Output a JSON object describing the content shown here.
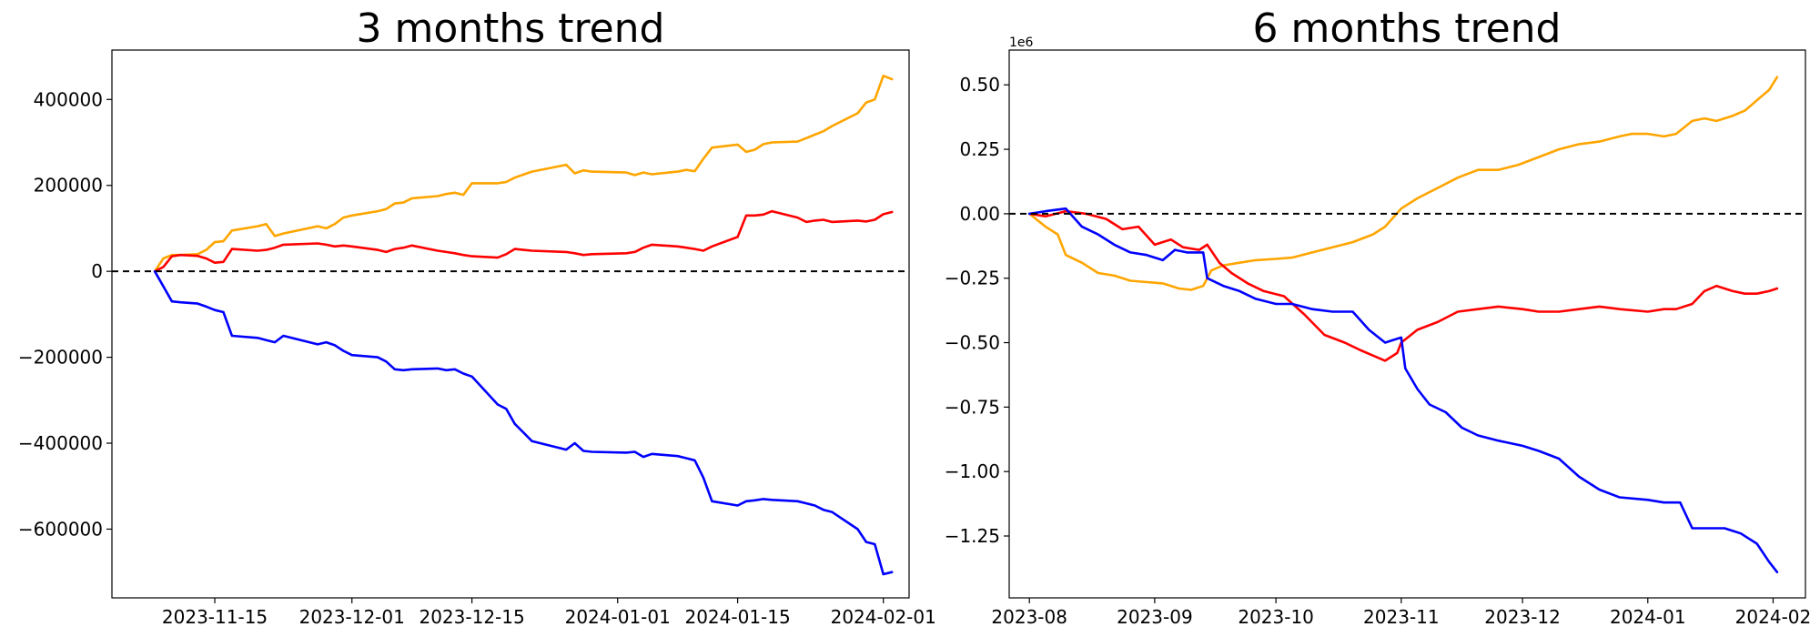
{
  "chart_data": [
    {
      "type": "line",
      "title": "3 months trend",
      "xlabel": "",
      "ylabel": "",
      "xlim": [
        "2023-11-03",
        "2024-02-04"
      ],
      "ylim": [
        -760000,
        515000
      ],
      "x_ticks": [
        "2023-11-15",
        "2023-12-01",
        "2023-12-15",
        "2024-01-01",
        "2024-01-15",
        "2024-02-01"
      ],
      "y_ticks": [
        400000,
        200000,
        0,
        -200000,
        -400000,
        -600000
      ],
      "y_tick_labels": [
        "400000",
        "200000",
        "0",
        "−200000",
        "−400000",
        "−600000"
      ],
      "y_offset_label": "",
      "reference_line": 0,
      "grid": false,
      "series": [
        {
          "color": "#ffa500",
          "x": [
            "2023-11-08",
            "2023-11-09",
            "2023-11-10",
            "2023-11-11",
            "2023-11-13",
            "2023-11-14",
            "2023-11-15",
            "2023-11-16",
            "2023-11-17",
            "2023-11-20",
            "2023-11-21",
            "2023-11-22",
            "2023-11-23",
            "2023-11-27",
            "2023-11-28",
            "2023-11-29",
            "2023-11-30",
            "2023-12-01",
            "2023-12-04",
            "2023-12-05",
            "2023-12-06",
            "2023-12-07",
            "2023-12-08",
            "2023-12-11",
            "2023-12-12",
            "2023-12-13",
            "2023-12-14",
            "2023-12-15",
            "2023-12-18",
            "2023-12-19",
            "2023-12-20",
            "2023-12-21",
            "2023-12-22",
            "2023-12-26",
            "2023-12-27",
            "2023-12-28",
            "2023-12-29",
            "2024-01-02",
            "2024-01-03",
            "2024-01-04",
            "2024-01-05",
            "2024-01-08",
            "2024-01-09",
            "2024-01-10",
            "2024-01-11",
            "2024-01-12",
            "2024-01-15",
            "2024-01-16",
            "2024-01-17",
            "2024-01-18",
            "2024-01-19",
            "2024-01-22",
            "2024-01-23",
            "2024-01-24",
            "2024-01-25",
            "2024-01-26",
            "2024-01-29",
            "2024-01-30",
            "2024-01-31",
            "2024-02-01",
            "2024-02-02"
          ],
          "y": [
            0,
            30000,
            38000,
            38000,
            40000,
            50000,
            68000,
            70000,
            95000,
            105000,
            110000,
            82000,
            88000,
            105000,
            100000,
            110000,
            125000,
            130000,
            140000,
            145000,
            158000,
            160000,
            170000,
            175000,
            180000,
            183000,
            178000,
            205000,
            205000,
            208000,
            218000,
            225000,
            232000,
            248000,
            228000,
            235000,
            232000,
            230000,
            224000,
            230000,
            226000,
            232000,
            236000,
            233000,
            262000,
            288000,
            295000,
            278000,
            283000,
            296000,
            300000,
            302000,
            310000,
            318000,
            326000,
            338000,
            368000,
            393000,
            400000,
            455000,
            447000
          ]
        },
        {
          "color": "#ff0000",
          "x": [
            "2023-11-08",
            "2023-11-09",
            "2023-11-10",
            "2023-11-11",
            "2023-11-13",
            "2023-11-14",
            "2023-11-15",
            "2023-11-16",
            "2023-11-17",
            "2023-11-20",
            "2023-11-21",
            "2023-11-22",
            "2023-11-23",
            "2023-11-27",
            "2023-11-28",
            "2023-11-29",
            "2023-11-30",
            "2023-12-01",
            "2023-12-04",
            "2023-12-05",
            "2023-12-06",
            "2023-12-07",
            "2023-12-08",
            "2023-12-11",
            "2023-12-12",
            "2023-12-13",
            "2023-12-14",
            "2023-12-15",
            "2023-12-18",
            "2023-12-19",
            "2023-12-20",
            "2023-12-21",
            "2023-12-22",
            "2023-12-26",
            "2023-12-27",
            "2023-12-28",
            "2023-12-29",
            "2024-01-02",
            "2024-01-03",
            "2024-01-04",
            "2024-01-05",
            "2024-01-08",
            "2024-01-09",
            "2024-01-10",
            "2024-01-11",
            "2024-01-12",
            "2024-01-15",
            "2024-01-16",
            "2024-01-17",
            "2024-01-18",
            "2024-01-19",
            "2024-01-22",
            "2024-01-23",
            "2024-01-24",
            "2024-01-25",
            "2024-01-26",
            "2024-01-29",
            "2024-01-30",
            "2024-01-31",
            "2024-02-01",
            "2024-02-02"
          ],
          "y": [
            0,
            10000,
            35000,
            38000,
            36000,
            30000,
            20000,
            22000,
            52000,
            48000,
            50000,
            55000,
            62000,
            65000,
            62000,
            58000,
            60000,
            58000,
            50000,
            45000,
            52000,
            55000,
            60000,
            48000,
            45000,
            42000,
            38000,
            35000,
            32000,
            40000,
            52000,
            50000,
            48000,
            45000,
            42000,
            38000,
            40000,
            42000,
            45000,
            55000,
            62000,
            58000,
            55000,
            52000,
            48000,
            58000,
            80000,
            130000,
            130000,
            132000,
            140000,
            125000,
            115000,
            118000,
            120000,
            115000,
            118000,
            116000,
            120000,
            133000,
            138000
          ]
        },
        {
          "color": "#0000ff",
          "x": [
            "2023-11-08",
            "2023-11-09",
            "2023-11-10",
            "2023-11-11",
            "2023-11-13",
            "2023-11-14",
            "2023-11-15",
            "2023-11-16",
            "2023-11-17",
            "2023-11-20",
            "2023-11-21",
            "2023-11-22",
            "2023-11-23",
            "2023-11-27",
            "2023-11-28",
            "2023-11-29",
            "2023-11-30",
            "2023-12-01",
            "2023-12-04",
            "2023-12-05",
            "2023-12-06",
            "2023-12-07",
            "2023-12-08",
            "2023-12-11",
            "2023-12-12",
            "2023-12-13",
            "2023-12-14",
            "2023-12-15",
            "2023-12-18",
            "2023-12-19",
            "2023-12-20",
            "2023-12-21",
            "2023-12-22",
            "2023-12-26",
            "2023-12-27",
            "2023-12-28",
            "2023-12-29",
            "2024-01-02",
            "2024-01-03",
            "2024-01-04",
            "2024-01-05",
            "2024-01-08",
            "2024-01-09",
            "2024-01-10",
            "2024-01-11",
            "2024-01-12",
            "2024-01-15",
            "2024-01-16",
            "2024-01-17",
            "2024-01-18",
            "2024-01-19",
            "2024-01-22",
            "2024-01-23",
            "2024-01-24",
            "2024-01-25",
            "2024-01-26",
            "2024-01-29",
            "2024-01-30",
            "2024-01-31",
            "2024-02-01",
            "2024-02-02"
          ],
          "y": [
            0,
            -35000,
            -70000,
            -72000,
            -75000,
            -82000,
            -90000,
            -95000,
            -150000,
            -155000,
            -160000,
            -165000,
            -150000,
            -170000,
            -165000,
            -172000,
            -185000,
            -195000,
            -200000,
            -210000,
            -228000,
            -230000,
            -228000,
            -226000,
            -230000,
            -228000,
            -238000,
            -245000,
            -310000,
            -320000,
            -355000,
            -375000,
            -395000,
            -415000,
            -400000,
            -418000,
            -420000,
            -422000,
            -420000,
            -432000,
            -425000,
            -430000,
            -435000,
            -440000,
            -480000,
            -535000,
            -545000,
            -535000,
            -533000,
            -530000,
            -532000,
            -535000,
            -540000,
            -545000,
            -555000,
            -560000,
            -600000,
            -630000,
            -635000,
            -705000,
            -700000
          ]
        }
      ]
    },
    {
      "type": "line",
      "title": "6 months trend",
      "xlabel": "",
      "ylabel": "",
      "xlim": [
        "2023-07-27",
        "2024-02-09"
      ],
      "ylim": [
        -1.49,
        0.635
      ],
      "x_ticks": [
        "2023-08",
        "2023-09",
        "2023-10",
        "2023-11",
        "2023-12",
        "2024-01",
        "2024-02"
      ],
      "x_tick_dates": [
        "2023-08-01",
        "2023-09-01",
        "2023-10-01",
        "2023-11-01",
        "2023-12-01",
        "2024-01-01",
        "2024-02-01"
      ],
      "y_ticks": [
        0.5,
        0.25,
        0,
        -0.25,
        -0.5,
        -0.75,
        -1.0,
        -1.25
      ],
      "y_tick_labels": [
        "0.50",
        "0.25",
        "0.00",
        "−0.25",
        "−0.50",
        "−0.75",
        "−1.00",
        "−1.25"
      ],
      "y_offset_label": "1e6",
      "reference_line": 0,
      "grid": false,
      "series": [
        {
          "color": "#ffa500",
          "x": [
            "2023-08-01",
            "2023-08-05",
            "2023-08-08",
            "2023-08-10",
            "2023-08-14",
            "2023-08-18",
            "2023-08-22",
            "2023-08-26",
            "2023-08-30",
            "2023-09-03",
            "2023-09-07",
            "2023-09-10",
            "2023-09-13",
            "2023-09-15",
            "2023-09-18",
            "2023-09-22",
            "2023-09-26",
            "2023-10-01",
            "2023-10-05",
            "2023-10-10",
            "2023-10-15",
            "2023-10-20",
            "2023-10-25",
            "2023-10-28",
            "2023-11-01",
            "2023-11-05",
            "2023-11-10",
            "2023-11-15",
            "2023-11-20",
            "2023-11-25",
            "2023-11-30",
            "2023-12-05",
            "2023-12-10",
            "2023-12-15",
            "2023-12-20",
            "2023-12-25",
            "2023-12-28",
            "2024-01-01",
            "2024-01-05",
            "2024-01-08",
            "2024-01-12",
            "2024-01-15",
            "2024-01-18",
            "2024-01-22",
            "2024-01-25",
            "2024-01-28",
            "2024-01-31",
            "2024-02-02"
          ],
          "y": [
            0,
            -0.05,
            -0.08,
            -0.16,
            -0.19,
            -0.23,
            -0.24,
            -0.26,
            -0.265,
            -0.27,
            -0.29,
            -0.295,
            -0.28,
            -0.22,
            -0.2,
            -0.19,
            -0.18,
            -0.175,
            -0.17,
            -0.15,
            -0.13,
            -0.11,
            -0.08,
            -0.05,
            0.02,
            0.06,
            0.1,
            0.14,
            0.17,
            0.17,
            0.19,
            0.22,
            0.25,
            0.27,
            0.28,
            0.3,
            0.31,
            0.31,
            0.3,
            0.31,
            0.36,
            0.37,
            0.36,
            0.38,
            0.4,
            0.44,
            0.48,
            0.53
          ]
        },
        {
          "color": "#ff0000",
          "x": [
            "2023-08-01",
            "2023-08-05",
            "2023-08-10",
            "2023-08-15",
            "2023-08-20",
            "2023-08-24",
            "2023-08-28",
            "2023-09-01",
            "2023-09-05",
            "2023-09-08",
            "2023-09-12",
            "2023-09-14",
            "2023-09-17",
            "2023-09-20",
            "2023-09-24",
            "2023-09-28",
            "2023-10-03",
            "2023-10-08",
            "2023-10-13",
            "2023-10-18",
            "2023-10-22",
            "2023-10-25",
            "2023-10-28",
            "2023-10-31",
            "2023-11-01",
            "2023-11-05",
            "2023-11-10",
            "2023-11-15",
            "2023-11-20",
            "2023-11-25",
            "2023-12-01",
            "2023-12-05",
            "2023-12-10",
            "2023-12-15",
            "2023-12-20",
            "2023-12-25",
            "2024-01-01",
            "2024-01-05",
            "2024-01-08",
            "2024-01-12",
            "2024-01-15",
            "2024-01-18",
            "2024-01-22",
            "2024-01-25",
            "2024-01-28",
            "2024-01-31",
            "2024-02-02"
          ],
          "y": [
            0,
            -0.01,
            0.01,
            0,
            -0.02,
            -0.06,
            -0.05,
            -0.12,
            -0.1,
            -0.13,
            -0.14,
            -0.12,
            -0.19,
            -0.23,
            -0.27,
            -0.3,
            -0.32,
            -0.39,
            -0.47,
            -0.5,
            -0.53,
            -0.55,
            -0.57,
            -0.54,
            -0.5,
            -0.45,
            -0.42,
            -0.38,
            -0.37,
            -0.36,
            -0.37,
            -0.38,
            -0.38,
            -0.37,
            -0.36,
            -0.37,
            -0.38,
            -0.37,
            -0.37,
            -0.35,
            -0.3,
            -0.28,
            -0.3,
            -0.31,
            -0.31,
            -0.3,
            -0.29
          ]
        },
        {
          "color": "#0000ff",
          "x": [
            "2023-08-01",
            "2023-08-05",
            "2023-08-10",
            "2023-08-14",
            "2023-08-18",
            "2023-08-22",
            "2023-08-26",
            "2023-08-30",
            "2023-09-03",
            "2023-09-06",
            "2023-09-09",
            "2023-09-13",
            "2023-09-14",
            "2023-09-18",
            "2023-09-22",
            "2023-09-26",
            "2023-10-01",
            "2023-10-05",
            "2023-10-10",
            "2023-10-15",
            "2023-10-20",
            "2023-10-24",
            "2023-10-28",
            "2023-11-01",
            "2023-11-02",
            "2023-11-05",
            "2023-11-08",
            "2023-11-12",
            "2023-11-16",
            "2023-11-20",
            "2023-11-25",
            "2023-12-01",
            "2023-12-05",
            "2023-12-10",
            "2023-12-15",
            "2023-12-20",
            "2023-12-25",
            "2024-01-01",
            "2024-01-05",
            "2024-01-09",
            "2024-01-12",
            "2024-01-16",
            "2024-01-20",
            "2024-01-24",
            "2024-01-28",
            "2024-01-31",
            "2024-02-02"
          ],
          "y": [
            0,
            0.01,
            0.02,
            -0.05,
            -0.08,
            -0.12,
            -0.15,
            -0.16,
            -0.18,
            -0.14,
            -0.15,
            -0.15,
            -0.25,
            -0.28,
            -0.3,
            -0.33,
            -0.35,
            -0.35,
            -0.37,
            -0.38,
            -0.38,
            -0.45,
            -0.5,
            -0.48,
            -0.6,
            -0.68,
            -0.74,
            -0.77,
            -0.83,
            -0.86,
            -0.88,
            -0.9,
            -0.92,
            -0.95,
            -1.02,
            -1.07,
            -1.1,
            -1.11,
            -1.12,
            -1.12,
            -1.22,
            -1.22,
            -1.22,
            -1.24,
            -1.28,
            -1.35,
            -1.39
          ]
        }
      ]
    }
  ]
}
